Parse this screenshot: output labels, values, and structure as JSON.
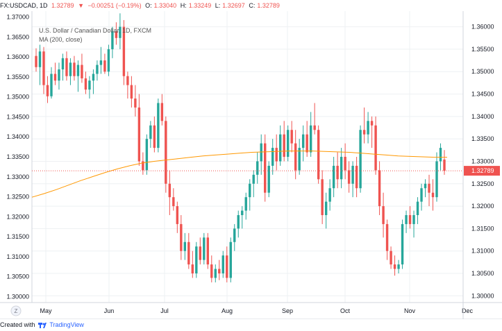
{
  "header": {
    "symbol": "FX:USDCAD, 1D",
    "last": "1.32789",
    "arrow": "▼",
    "change": "−0.00251 (−0.19%)",
    "open_label": "O:",
    "open": "1.33040",
    "high_label": "H:",
    "high": "1.33249",
    "low_label": "L:",
    "low": "1.32697",
    "close_label": "C:",
    "close": "1.32789"
  },
  "legend": {
    "title": "U.S. Dollar / Canadian Dollar, 1D, FXCM",
    "indicator": "MA (200, close)"
  },
  "footer": {
    "created_with": "Created with",
    "brand": "TradingView"
  },
  "colors": {
    "up": "#26a69a",
    "down": "#ef5350",
    "ma": "#ff9800",
    "grid": "#eef0f3",
    "price_tag": "#ef5350"
  },
  "chart_data": {
    "type": "candlestick",
    "y_ticks_left": [
      "1.30000",
      "1.30500",
      "1.31000",
      "1.31500",
      "1.32000",
      "1.32500",
      "1.33000",
      "1.33500",
      "1.34000",
      "1.34500",
      "1.35000",
      "1.35500",
      "1.36000",
      "1.36500",
      "1.37000"
    ],
    "y_ticks_right": [
      "1.30000",
      "1.30500",
      "1.31000",
      "1.31500",
      "1.32000",
      "1.32500",
      "1.33000",
      "1.33500",
      "1.34000",
      "1.34500",
      "1.35000",
      "1.35500",
      "1.36000"
    ],
    "x_ticks": [
      "May",
      "Jun",
      "Jul",
      "Aug",
      "Sep",
      "Oct",
      "Nov",
      "Dec"
    ],
    "last_price_label": "1.32789",
    "left_ylim": [
      1.2985,
      1.3715
    ],
    "right_ylim": [
      1.2985,
      1.3635
    ],
    "candles": [
      [
        1.3535,
        1.3552,
        1.35,
        1.351
      ],
      [
        1.351,
        1.356,
        1.347,
        1.3545
      ],
      [
        1.3545,
        1.3555,
        1.345,
        1.347
      ],
      [
        1.347,
        1.349,
        1.343,
        1.3445
      ],
      [
        1.3445,
        1.351,
        1.344,
        1.3495
      ],
      [
        1.3495,
        1.352,
        1.347,
        1.348
      ],
      [
        1.348,
        1.352,
        1.346,
        1.3505
      ],
      [
        1.3505,
        1.354,
        1.348,
        1.353
      ],
      [
        1.353,
        1.3545,
        1.348,
        1.349
      ],
      [
        1.349,
        1.353,
        1.347,
        1.352
      ],
      [
        1.352,
        1.3535,
        1.348,
        1.349
      ],
      [
        1.349,
        1.3525,
        1.3455,
        1.3515
      ],
      [
        1.3515,
        1.354,
        1.3475,
        1.3485
      ],
      [
        1.3485,
        1.35,
        1.345,
        1.346
      ],
      [
        1.346,
        1.349,
        1.344,
        1.348
      ],
      [
        1.348,
        1.3505,
        1.345,
        1.3495
      ],
      [
        1.3495,
        1.3525,
        1.348,
        1.3515
      ],
      [
        1.3515,
        1.3555,
        1.3495,
        1.3525
      ],
      [
        1.3525,
        1.354,
        1.3495,
        1.35
      ],
      [
        1.35,
        1.356,
        1.349,
        1.355
      ],
      [
        1.355,
        1.36,
        1.353,
        1.359
      ],
      [
        1.359,
        1.361,
        1.356,
        1.3575
      ],
      [
        1.3575,
        1.363,
        1.355,
        1.36
      ],
      [
        1.36,
        1.3615,
        1.347,
        1.349
      ],
      [
        1.349,
        1.35,
        1.344,
        1.347
      ],
      [
        1.347,
        1.349,
        1.342,
        1.344
      ],
      [
        1.344,
        1.347,
        1.34,
        1.342
      ],
      [
        1.342,
        1.345,
        1.329,
        1.33
      ],
      [
        1.33,
        1.332,
        1.327,
        1.328
      ],
      [
        1.328,
        1.336,
        1.327,
        1.335
      ],
      [
        1.335,
        1.339,
        1.333,
        1.338
      ],
      [
        1.338,
        1.34,
        1.332,
        1.333
      ],
      [
        1.333,
        1.344,
        1.332,
        1.343
      ],
      [
        1.343,
        1.345,
        1.338,
        1.339
      ],
      [
        1.339,
        1.34,
        1.323,
        1.325
      ],
      [
        1.325,
        1.328,
        1.318,
        1.322
      ],
      [
        1.322,
        1.324,
        1.319,
        1.32
      ],
      [
        1.32,
        1.321,
        1.314,
        1.316
      ],
      [
        1.316,
        1.318,
        1.308,
        1.31
      ],
      [
        1.31,
        1.314,
        1.308,
        1.312
      ],
      [
        1.312,
        1.314,
        1.306,
        1.307
      ],
      [
        1.307,
        1.31,
        1.304,
        1.305
      ],
      [
        1.305,
        1.312,
        1.304,
        1.311
      ],
      [
        1.311,
        1.313,
        1.307,
        1.308
      ],
      [
        1.308,
        1.314,
        1.307,
        1.313
      ],
      [
        1.313,
        1.314,
        1.306,
        1.307
      ],
      [
        1.307,
        1.309,
        1.303,
        1.304
      ],
      [
        1.304,
        1.307,
        1.303,
        1.306
      ],
      [
        1.306,
        1.308,
        1.3035,
        1.305
      ],
      [
        1.305,
        1.31,
        1.304,
        1.309
      ],
      [
        1.309,
        1.311,
        1.303,
        1.304
      ],
      [
        1.304,
        1.313,
        1.303,
        1.312
      ],
      [
        1.312,
        1.316,
        1.31,
        1.315
      ],
      [
        1.315,
        1.319,
        1.313,
        1.318
      ],
      [
        1.318,
        1.32,
        1.315,
        1.319
      ],
      [
        1.319,
        1.323,
        1.317,
        1.322
      ],
      [
        1.322,
        1.326,
        1.319,
        1.325
      ],
      [
        1.325,
        1.328,
        1.322,
        1.327
      ],
      [
        1.327,
        1.332,
        1.325,
        1.33
      ],
      [
        1.33,
        1.336,
        1.327,
        1.334
      ],
      [
        1.334,
        1.336,
        1.321,
        1.323
      ],
      [
        1.323,
        1.33,
        1.322,
        1.329
      ],
      [
        1.329,
        1.335,
        1.327,
        1.333
      ],
      [
        1.333,
        1.336,
        1.328,
        1.33
      ],
      [
        1.33,
        1.338,
        1.329,
        1.336
      ],
      [
        1.336,
        1.339,
        1.33,
        1.331
      ],
      [
        1.331,
        1.338,
        1.33,
        1.337
      ],
      [
        1.337,
        1.339,
        1.332,
        1.334
      ],
      [
        1.334,
        1.337,
        1.326,
        1.328
      ],
      [
        1.328,
        1.335,
        1.327,
        1.333
      ],
      [
        1.333,
        1.338,
        1.33,
        1.336
      ],
      [
        1.336,
        1.339,
        1.331,
        1.332
      ],
      [
        1.332,
        1.341,
        1.331,
        1.338
      ],
      [
        1.338,
        1.343,
        1.336,
        1.337
      ],
      [
        1.337,
        1.338,
        1.325,
        1.326
      ],
      [
        1.326,
        1.328,
        1.316,
        1.318
      ],
      [
        1.318,
        1.323,
        1.315,
        1.321
      ],
      [
        1.321,
        1.326,
        1.319,
        1.324
      ],
      [
        1.324,
        1.331,
        1.322,
        1.329
      ],
      [
        1.329,
        1.332,
        1.324,
        1.326
      ],
      [
        1.326,
        1.333,
        1.324,
        1.331
      ],
      [
        1.331,
        1.334,
        1.326,
        1.328
      ],
      [
        1.328,
        1.33,
        1.323,
        1.325
      ],
      [
        1.325,
        1.33,
        1.322,
        1.329
      ],
      [
        1.329,
        1.331,
        1.322,
        1.324
      ],
      [
        1.324,
        1.338,
        1.323,
        1.337
      ],
      [
        1.337,
        1.342,
        1.334,
        1.336
      ],
      [
        1.336,
        1.341,
        1.334,
        1.339
      ],
      [
        1.339,
        1.34,
        1.333,
        1.338
      ],
      [
        1.338,
        1.34,
        1.327,
        1.328
      ],
      [
        1.328,
        1.33,
        1.318,
        1.32
      ],
      [
        1.32,
        1.323,
        1.313,
        1.316
      ],
      [
        1.316,
        1.317,
        1.308,
        1.31
      ],
      [
        1.31,
        1.311,
        1.306,
        1.307
      ],
      [
        1.307,
        1.309,
        1.3045,
        1.306
      ],
      [
        1.306,
        1.308,
        1.305,
        1.307
      ],
      [
        1.307,
        1.317,
        1.306,
        1.316
      ],
      [
        1.316,
        1.319,
        1.314,
        1.318
      ],
      [
        1.318,
        1.32,
        1.315,
        1.316
      ],
      [
        1.316,
        1.319,
        1.313,
        1.318
      ],
      [
        1.318,
        1.322,
        1.316,
        1.321
      ],
      [
        1.321,
        1.325,
        1.319,
        1.324
      ],
      [
        1.324,
        1.326,
        1.322,
        1.325
      ],
      [
        1.325,
        1.327,
        1.32,
        1.323
      ],
      [
        1.323,
        1.326,
        1.319,
        1.322
      ],
      [
        1.322,
        1.332,
        1.321,
        1.33
      ],
      [
        1.33,
        1.334,
        1.328,
        1.333
      ],
      [
        1.3304,
        1.3325,
        1.327,
        1.3279
      ]
    ],
    "ma": [
      1.322,
      1.3228,
      1.3237,
      1.3247,
      1.3257,
      1.3266,
      1.3275,
      1.3283,
      1.329,
      1.3296,
      1.33,
      1.3303,
      1.3306,
      1.3309,
      1.3312,
      1.3314,
      1.3316,
      1.3318,
      1.332,
      1.3321,
      1.3322,
      1.3323,
      1.3323,
      1.3323,
      1.3322,
      1.3321,
      1.332,
      1.3318,
      1.3316,
      1.3314,
      1.3312,
      1.3311,
      1.331,
      1.3309,
      1.3309
    ]
  }
}
